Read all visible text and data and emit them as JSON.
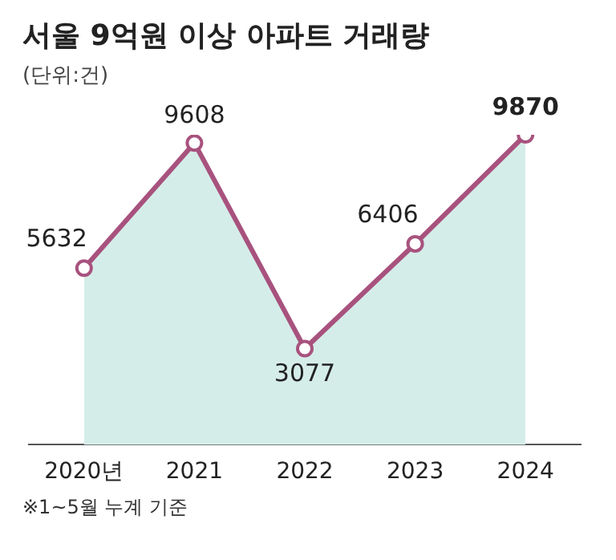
{
  "chart_data": {
    "type": "area",
    "title": "서울 9억원 이상 아파트 거래량",
    "subtitle": "(단위:건)",
    "categories": [
      "2020년",
      "2021",
      "2022",
      "2023",
      "2024"
    ],
    "series": [
      {
        "color": "#a8527e",
        "values": [
          5632,
          9608,
          3077,
          6406,
          9870
        ]
      }
    ],
    "data_labels": true,
    "grid": false,
    "legend": false,
    "marker": "circle",
    "tick_labels": "x",
    "annotations": [
      "※1~5월 누계 기준"
    ]
  }
}
